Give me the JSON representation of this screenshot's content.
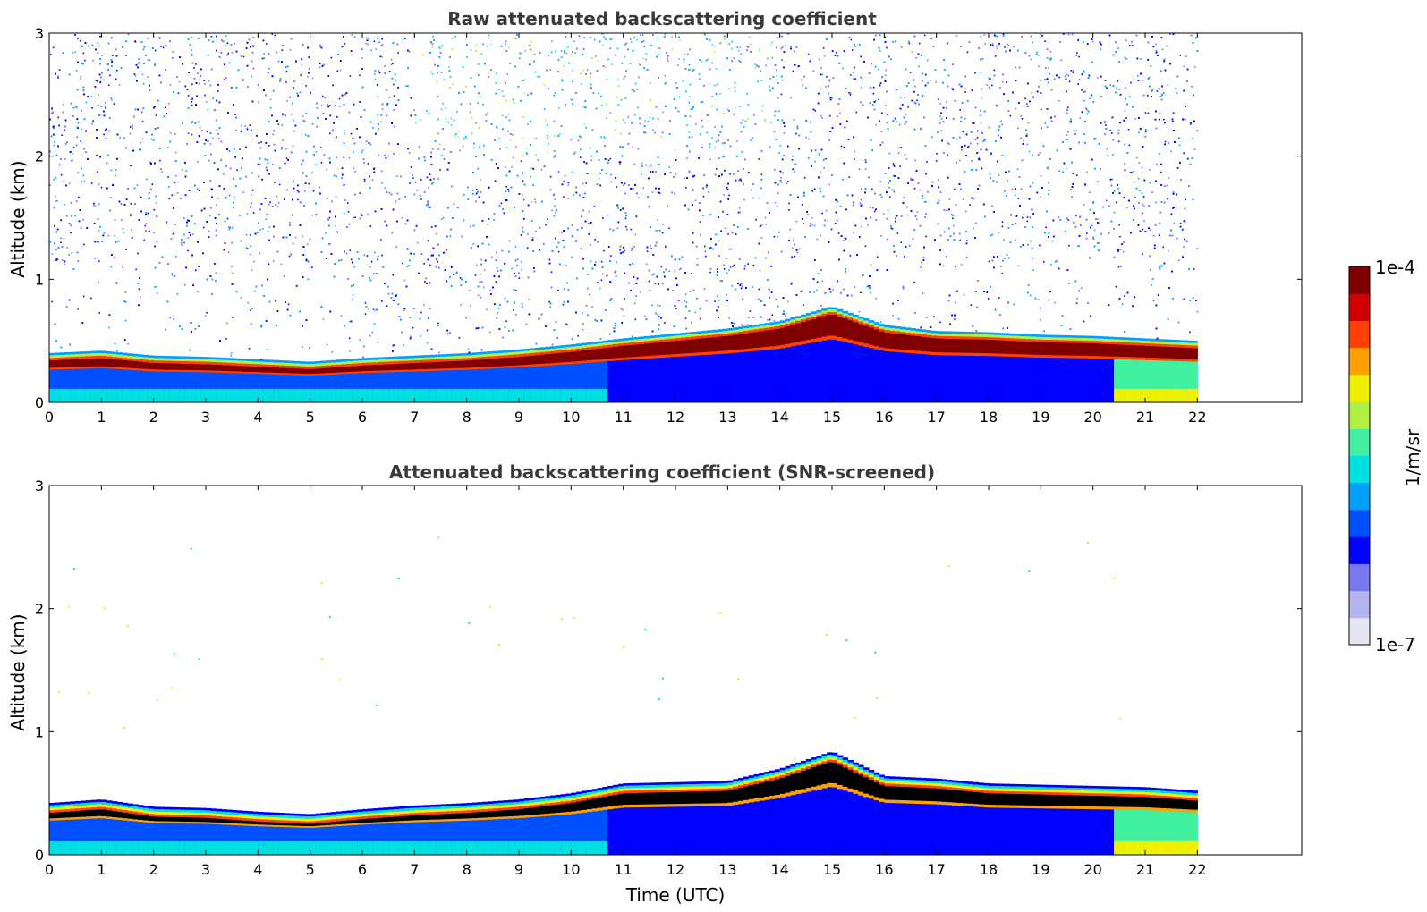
{
  "chart_data": [
    {
      "type": "heatmap",
      "title": "Raw attenuated backscattering coefficient",
      "xlabel": "",
      "ylabel": "Altitude (km)",
      "xlim": [
        0,
        24
      ],
      "ylim": [
        0,
        3
      ],
      "x_ticks": [
        "0",
        "1",
        "2",
        "3",
        "4",
        "5",
        "6",
        "7",
        "8",
        "9",
        "10",
        "11",
        "12",
        "13",
        "14",
        "15",
        "16",
        "17",
        "18",
        "19",
        "20",
        "21",
        "22"
      ],
      "y_ticks": [
        "0",
        "1",
        "2",
        "3"
      ],
      "data_end_hour": 22,
      "layer_top_km_by_hour": [
        0.4,
        0.42,
        0.38,
        0.37,
        0.35,
        0.33,
        0.36,
        0.38,
        0.4,
        0.43,
        0.47,
        0.52,
        0.56,
        0.6,
        0.66,
        0.78,
        0.63,
        0.58,
        0.57,
        0.55,
        0.54,
        0.52,
        0.5
      ],
      "screened": false
    },
    {
      "type": "heatmap",
      "title": "Attenuated backscattering coefficient (SNR-screened)",
      "xlabel": "Time (UTC)",
      "ylabel": "Altitude (km)",
      "xlim": [
        0,
        24
      ],
      "ylim": [
        0,
        3
      ],
      "x_ticks": [
        "0",
        "1",
        "2",
        "3",
        "4",
        "5",
        "6",
        "7",
        "8",
        "9",
        "10",
        "11",
        "12",
        "13",
        "14",
        "15",
        "16",
        "17",
        "18",
        "19",
        "20",
        "21",
        "22"
      ],
      "y_ticks": [
        "0",
        "1",
        "2",
        "3"
      ],
      "data_end_hour": 22,
      "layer_top_km_by_hour": [
        0.42,
        0.45,
        0.39,
        0.38,
        0.35,
        0.33,
        0.37,
        0.4,
        0.42,
        0.45,
        0.5,
        0.58,
        0.59,
        0.6,
        0.7,
        0.84,
        0.64,
        0.62,
        0.58,
        0.57,
        0.56,
        0.55,
        0.52
      ],
      "screened": true
    }
  ],
  "colorbar": {
    "label": "1/m/sr",
    "max_label": "1e-4",
    "min_label": "1e-7",
    "colors": [
      "#e6e6f5",
      "#b4b4ee",
      "#7878f0",
      "#0000ff",
      "#0050ff",
      "#00a0ff",
      "#00e0e0",
      "#40f0a0",
      "#b0f040",
      "#f0f000",
      "#ffa000",
      "#ff4000",
      "#d00000",
      "#800000"
    ]
  }
}
